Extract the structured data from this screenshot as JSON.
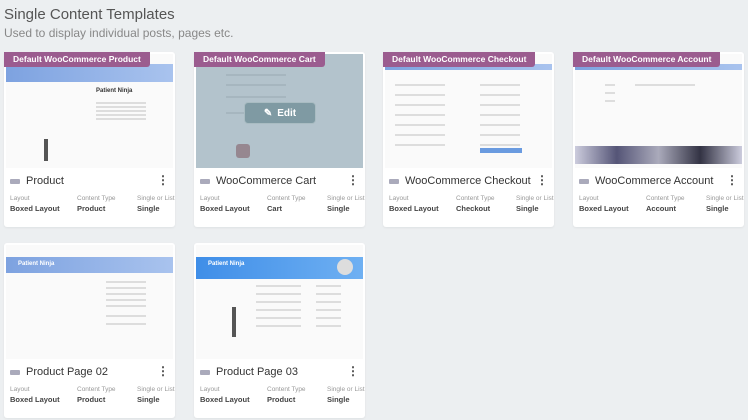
{
  "header": {
    "title": "Single Content Templates",
    "subtitle": "Used to display individual posts, pages etc."
  },
  "meta_labels": {
    "layout": "Layout",
    "content_type": "Content Type",
    "single_or_list": "Single or List"
  },
  "hover_edit_label": "Edit",
  "accent": "#9b5c8f",
  "templates": [
    {
      "badge": "Default WooCommerce Product",
      "name": "Product",
      "layout": "Boxed Layout",
      "content_type": "Product",
      "single_or_list": "Single",
      "preview_title": "Patient Ninja"
    },
    {
      "badge": "Default WooCommerce Cart",
      "name": "WooCommerce Cart",
      "layout": "Boxed Layout",
      "content_type": "Cart",
      "single_or_list": "Single"
    },
    {
      "badge": "Default WooCommerce Checkout",
      "name": "WooCommerce Checkout",
      "layout": "Boxed Layout",
      "content_type": "Checkout",
      "single_or_list": "Single"
    },
    {
      "badge": "Default WooCommerce Account",
      "name": "WooCommerce Account",
      "layout": "Boxed Layout",
      "content_type": "Account",
      "single_or_list": "Single"
    },
    {
      "badge": "",
      "name": "Product Page 02",
      "layout": "Boxed Layout",
      "content_type": "Product",
      "single_or_list": "Single",
      "preview_title": "Patient Ninja"
    },
    {
      "badge": "",
      "name": "Product Page 03",
      "layout": "Boxed Layout",
      "content_type": "Product",
      "single_or_list": "Single",
      "preview_title": "Patient Ninja"
    }
  ]
}
